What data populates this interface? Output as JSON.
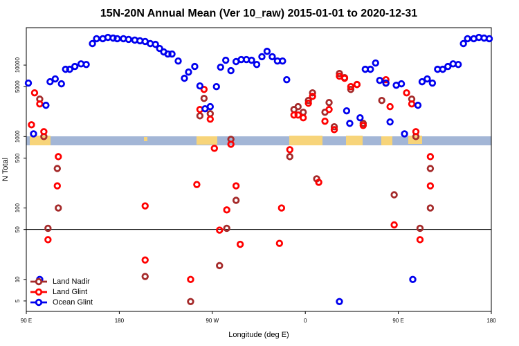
{
  "chart_data": {
    "type": "scatter",
    "title": "15N-20N Annual Mean (Ver 10_raw)   2015-01-01 to 2020-12-31",
    "x_label": "Longitude (deg E)",
    "y_label": "N Total",
    "log_y": true,
    "xlim": [
      90,
      540
    ],
    "ylim": [
      3.57,
      33400
    ],
    "xticks": [
      {
        "value": 90,
        "label": "90 E"
      },
      {
        "value": 180,
        "label": "180"
      },
      {
        "value": 270,
        "label": "90 W"
      },
      {
        "value": 360,
        "label": "0"
      },
      {
        "value": 450,
        "label": "90 E"
      },
      {
        "value": 540,
        "label": "180"
      }
    ],
    "yticks": [
      5,
      10,
      50,
      100,
      500,
      1000,
      5000,
      10000
    ],
    "hline": 50,
    "legend": "lower left",
    "series": [
      {
        "name": "Land Nadir",
        "color": "#a52a2a",
        "x": [
          103,
          107,
          111,
          120,
          121,
          205,
          249,
          258,
          262,
          268,
          277,
          284,
          288,
          293,
          345,
          349,
          353,
          358,
          363,
          367,
          371,
          379,
          383,
          388,
          393,
          398,
          404,
          410,
          416,
          434,
          438,
          446,
          463,
          467,
          471,
          481,
          481
        ],
        "values": [
          3340,
          1000,
          52,
          357,
          100,
          11,
          4.9,
          1950,
          3420,
          2090,
          15.6,
          52,
          915,
          128,
          523,
          2390,
          2620,
          2190,
          3200,
          4090,
          256,
          2190,
          2990,
          1370,
          7640,
          6680,
          4570,
          5350,
          1530,
          3200,
          5600,
          153,
          3340,
          1000,
          52,
          357,
          100
        ]
      },
      {
        "name": "Land Glint",
        "color": "#ff0000",
        "x": [
          95,
          98,
          103,
          107,
          111,
          121,
          120,
          205,
          205,
          249,
          255,
          258,
          262,
          268,
          272,
          277,
          284,
          288,
          293,
          297,
          335,
          337,
          345,
          349,
          353,
          358,
          363,
          367,
          373,
          379,
          383,
          388,
          393,
          398,
          404,
          410,
          416,
          438,
          442,
          446,
          458,
          463,
          467,
          471,
          481,
          481
        ],
        "values": [
          1460,
          4090,
          2860,
          1170,
          36,
          523,
          204,
          107,
          18.7,
          10,
          213,
          2390,
          4570,
          1750,
          684,
          49,
          94,
          780,
          204,
          31,
          32,
          100,
          655,
          2000,
          2000,
          1830,
          2930,
          3660,
          229,
          1640,
          2390,
          1250,
          7000,
          6540,
          5000,
          5350,
          1430,
          6250,
          2620,
          58,
          4090,
          2860,
          1170,
          36,
          523,
          204
        ]
      },
      {
        "name": "Ocean Glint",
        "color": "#0000ee",
        "x": [
          92,
          97,
          103,
          109,
          113,
          118,
          124,
          128,
          132,
          137,
          143,
          148,
          154,
          158,
          164,
          169,
          174,
          178,
          184,
          189,
          195,
          200,
          205,
          210,
          215,
          219,
          223,
          227,
          231,
          237,
          243,
          247,
          253,
          258,
          263,
          268,
          274,
          278,
          283,
          288,
          293,
          298,
          303,
          308,
          313,
          318,
          323,
          328,
          333,
          338,
          342,
          393,
          400,
          403,
          413,
          418,
          423,
          428,
          432,
          438,
          442,
          448,
          453,
          456,
          464,
          469,
          473,
          478,
          483,
          488,
          493,
          498,
          503,
          508,
          513,
          517,
          523,
          528,
          533,
          538
        ],
        "values": [
          5600,
          1090,
          10,
          2740,
          5850,
          6400,
          5470,
          8740,
          8740,
          9560,
          10400,
          10200,
          20000,
          23400,
          23400,
          24400,
          23900,
          23400,
          23400,
          22900,
          22400,
          21900,
          21400,
          20000,
          19500,
          17100,
          15300,
          14300,
          14300,
          11400,
          6540,
          7990,
          9560,
          5110,
          2450,
          2620,
          5000,
          9350,
          11700,
          8360,
          11200,
          11960,
          11960,
          11700,
          10200,
          13100,
          15600,
          13100,
          11400,
          11400,
          6250,
          4.9,
          2290,
          1530,
          1830,
          8740,
          8740,
          10700,
          6110,
          5600,
          1600,
          5230,
          5470,
          1090,
          10,
          2740,
          5850,
          6400,
          5600,
          8740,
          8740,
          9560,
          10400,
          10200,
          20000,
          23400,
          23400,
          24400,
          23900,
          23400
        ]
      }
    ]
  }
}
